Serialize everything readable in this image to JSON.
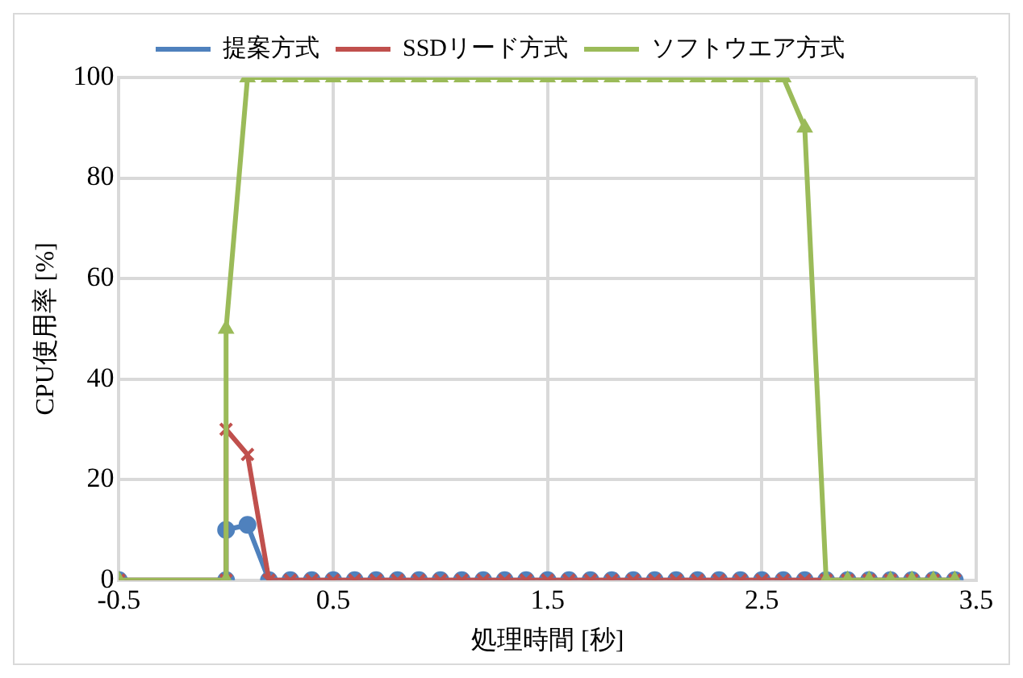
{
  "chart_data": {
    "type": "line",
    "xlabel": "処理時間 [秒]",
    "ylabel": "CPU使用率 [%]",
    "x": [
      -0.5,
      0,
      0,
      0.1,
      0.2,
      0.3,
      0.4,
      0.5,
      0.6,
      0.7,
      0.8,
      0.9,
      1.0,
      1.1,
      1.2,
      1.3,
      1.4,
      1.5,
      1.6,
      1.7,
      1.8,
      1.9,
      2.0,
      2.1,
      2.2,
      2.3,
      2.4,
      2.5,
      2.6,
      2.7,
      2.8,
      2.9,
      3.0,
      3.1,
      3.2,
      3.3,
      3.4
    ],
    "series": [
      {
        "name": "提案方式",
        "color": "#4f81bd",
        "marker": "circle",
        "values": [
          0,
          0,
          10,
          11,
          0,
          0,
          0,
          0,
          0,
          0,
          0,
          0,
          0,
          0,
          0,
          0,
          0,
          0,
          0,
          0,
          0,
          0,
          0,
          0,
          0,
          0,
          0,
          0,
          0,
          0,
          0,
          0,
          0,
          0,
          0,
          0,
          0
        ]
      },
      {
        "name": "SSDリード方式",
        "color": "#c0504d",
        "marker": "cross",
        "values": [
          0,
          0,
          30,
          25,
          0,
          0,
          0,
          0,
          0,
          0,
          0,
          0,
          0,
          0,
          0,
          0,
          0,
          0,
          0,
          0,
          0,
          0,
          0,
          0,
          0,
          0,
          0,
          0,
          0,
          0,
          0,
          0,
          0,
          0,
          0,
          0,
          0
        ]
      },
      {
        "name": "ソフトウエア方式",
        "color": "#9bbb59",
        "marker": "triangle",
        "values": [
          0,
          0,
          50,
          100,
          100,
          100,
          100,
          100,
          100,
          100,
          100,
          100,
          100,
          100,
          100,
          100,
          100,
          100,
          100,
          100,
          100,
          100,
          100,
          100,
          100,
          100,
          100,
          100,
          100,
          90,
          0,
          0,
          0,
          0,
          0,
          0,
          0
        ]
      }
    ],
    "xlim": [
      -0.5,
      3.5
    ],
    "xticks": [
      -0.5,
      0.5,
      1.5,
      2.5,
      3.5
    ],
    "ylim": [
      0,
      100
    ],
    "yticks": [
      0,
      20,
      40,
      60,
      80,
      100
    ],
    "grid": true,
    "legend": "top"
  }
}
